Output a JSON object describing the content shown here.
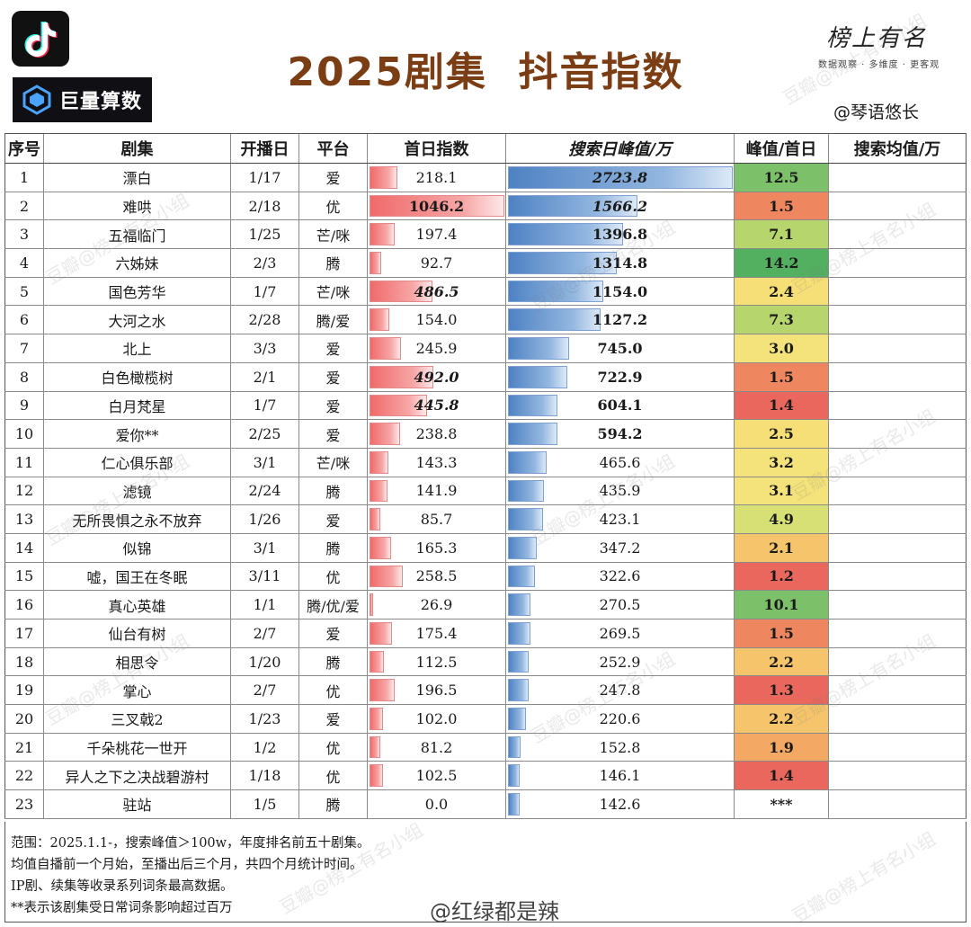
{
  "header": {
    "title": "2025剧集  抖音指数",
    "logo_text": "巨量算数",
    "brand_name": "榜上有名",
    "brand_sub": "数据观察 · 多维度 · 更客观",
    "author": "@琴语悠长",
    "watermark": "豆瓣@榜上有名小组"
  },
  "columns": [
    "序号",
    "剧集",
    "开播日",
    "平台",
    "首日指数",
    "搜索日峰值/万",
    "峰值/首日",
    "搜索均值/万"
  ],
  "chart_data": {
    "type": "table",
    "columns": [
      "序号",
      "剧集",
      "开播日",
      "平台",
      "首日指数",
      "搜索日峰值/万",
      "峰值/首日",
      "搜索均值/万"
    ],
    "rows": [
      {
        "rank": "1",
        "name": "漂白",
        "date": "1/17",
        "platform": "爱",
        "first": "218.1",
        "search": "2723.8",
        "ratio": "12.5",
        "avg": ""
      },
      {
        "rank": "2",
        "name": "难哄",
        "date": "2/18",
        "platform": "优",
        "first": "1046.2",
        "search": "1566.2",
        "ratio": "1.5",
        "avg": ""
      },
      {
        "rank": "3",
        "name": "五福临门",
        "date": "1/25",
        "platform": "芒/咪",
        "first": "197.4",
        "search": "1396.8",
        "ratio": "7.1",
        "avg": ""
      },
      {
        "rank": "4",
        "name": "六姊妹",
        "date": "2/3",
        "platform": "腾",
        "first": "92.7",
        "search": "1314.8",
        "ratio": "14.2",
        "avg": ""
      },
      {
        "rank": "5",
        "name": "国色芳华",
        "date": "1/7",
        "platform": "芒/咪",
        "first": "486.5",
        "search": "1154.0",
        "ratio": "2.4",
        "avg": ""
      },
      {
        "rank": "6",
        "name": "大河之水",
        "date": "2/28",
        "platform": "腾/爱",
        "first": "154.0",
        "search": "1127.2",
        "ratio": "7.3",
        "avg": ""
      },
      {
        "rank": "7",
        "name": "北上",
        "date": "3/3",
        "platform": "爱",
        "first": "245.9",
        "search": "745.0",
        "ratio": "3.0",
        "avg": ""
      },
      {
        "rank": "8",
        "name": "白色橄榄树",
        "date": "2/1",
        "platform": "爱",
        "first": "492.0",
        "search": "722.9",
        "ratio": "1.5",
        "avg": ""
      },
      {
        "rank": "9",
        "name": "白月梵星",
        "date": "1/7",
        "platform": "爱",
        "first": "445.8",
        "search": "604.1",
        "ratio": "1.4",
        "avg": ""
      },
      {
        "rank": "10",
        "name": "爱你**",
        "date": "2/25",
        "platform": "爱",
        "first": "238.8",
        "search": "594.2",
        "ratio": "2.5",
        "avg": ""
      },
      {
        "rank": "11",
        "name": "仁心俱乐部",
        "date": "3/1",
        "platform": "芒/咪",
        "first": "143.3",
        "search": "465.6",
        "ratio": "3.2",
        "avg": ""
      },
      {
        "rank": "12",
        "name": "滤镜",
        "date": "2/24",
        "platform": "腾",
        "first": "141.9",
        "search": "435.9",
        "ratio": "3.1",
        "avg": ""
      },
      {
        "rank": "13",
        "name": "无所畏惧之永不放弃",
        "date": "1/26",
        "platform": "爱",
        "first": "85.7",
        "search": "423.1",
        "ratio": "4.9",
        "avg": ""
      },
      {
        "rank": "14",
        "name": "似锦",
        "date": "3/1",
        "platform": "腾",
        "first": "165.3",
        "search": "347.2",
        "ratio": "2.1",
        "avg": ""
      },
      {
        "rank": "15",
        "name": "嘘，国王在冬眠",
        "date": "3/11",
        "platform": "优",
        "first": "258.5",
        "search": "322.6",
        "ratio": "1.2",
        "avg": ""
      },
      {
        "rank": "16",
        "name": "真心英雄",
        "date": "1/1",
        "platform": "腾/优/爱",
        "first": "26.9",
        "search": "270.5",
        "ratio": "10.1",
        "avg": ""
      },
      {
        "rank": "17",
        "name": "仙台有树",
        "date": "2/7",
        "platform": "爱",
        "first": "175.4",
        "search": "269.5",
        "ratio": "1.5",
        "avg": ""
      },
      {
        "rank": "18",
        "name": "相思令",
        "date": "1/20",
        "platform": "腾",
        "first": "112.5",
        "search": "252.9",
        "ratio": "2.2",
        "avg": ""
      },
      {
        "rank": "19",
        "name": "掌心",
        "date": "2/7",
        "platform": "优",
        "first": "196.5",
        "search": "247.8",
        "ratio": "1.3",
        "avg": ""
      },
      {
        "rank": "20",
        "name": "三叉戟2",
        "date": "1/23",
        "platform": "爱",
        "first": "102.0",
        "search": "220.6",
        "ratio": "2.2",
        "avg": ""
      },
      {
        "rank": "21",
        "name": "千朵桃花一世开",
        "date": "1/2",
        "platform": "优",
        "first": "81.2",
        "search": "152.8",
        "ratio": "1.9",
        "avg": ""
      },
      {
        "rank": "22",
        "name": "异人之下之决战碧游村",
        "date": "1/18",
        "platform": "优",
        "first": "102.5",
        "search": "146.1",
        "ratio": "1.4",
        "avg": ""
      },
      {
        "rank": "23",
        "name": "驻站",
        "date": "1/5",
        "platform": "腾",
        "first": "0.0",
        "search": "142.6",
        "ratio": "***",
        "avg": ""
      }
    ]
  },
  "notes": [
    "范围：2025.1.1-，搜索峰值＞100w，年度排名前五十剧集。",
    "均值自播前一个月始，至播出后三个月，共四个月统计时间。",
    "IP剧、续集等收录系列词条最高数据。",
    "**表示该剧集受日常词条影响超过百万"
  ],
  "weibo": "@红绿都是辣",
  "colors": {
    "title": "#7a3d14",
    "first_bar": "#f06a6a",
    "search_bar": "#4f82c3",
    "ratio_low": "#e8685c",
    "ratio_mid": "#f5e27a",
    "ratio_high": "#5fb86a"
  }
}
